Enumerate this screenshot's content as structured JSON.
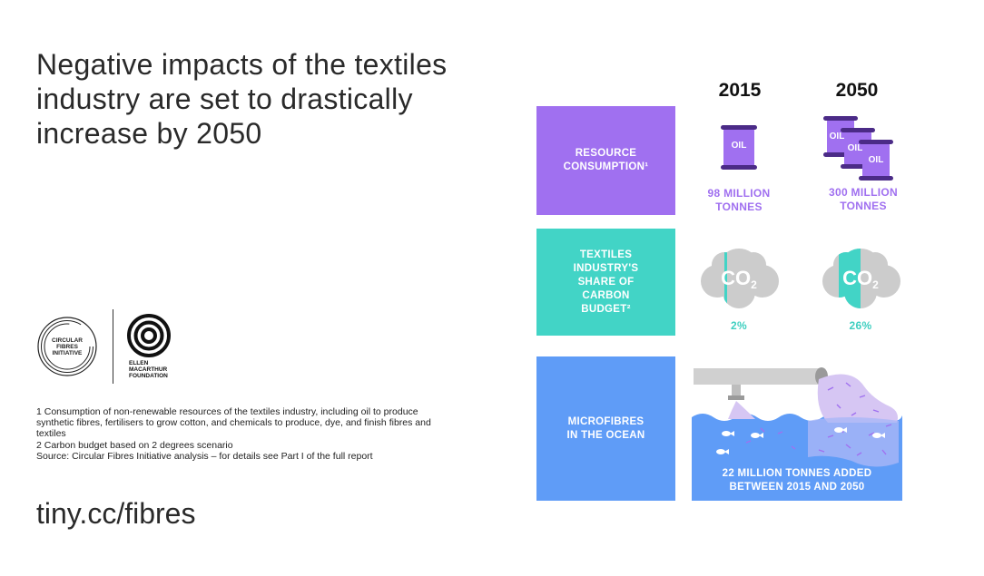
{
  "title": "Negative impacts of the textiles industry are set to drastically increase by 2050",
  "logos": {
    "cfi_text": [
      "CIRCULAR",
      "FIBRES",
      "INITIATIVE"
    ],
    "emf_text": [
      "ELLEN",
      "MACARTHUR",
      "FOUNDATION"
    ]
  },
  "footnotes": {
    "note1": "1 Consumption of non-renewable resources of the textiles industry, including oil to produce synthetic fibres, fertilisers to grow cotton, and chemicals to produce, dye, and finish fibres and textiles",
    "note2": "2 Carbon budget based on 2 degrees scenario",
    "source": "Source: Circular Fibres Initiative analysis – for details see Part I of the full report"
  },
  "url": "tiny.cc/fibres",
  "years": {
    "y1": "2015",
    "y2": "2050"
  },
  "rows": {
    "resource": {
      "label": "RESOURCE\nCONSUMPTION¹",
      "barrel_text": "OIL",
      "value_2015": "98 MILLION\nTONNES",
      "value_2050": "300 MILLION\nTONNES"
    },
    "carbon": {
      "label": "TEXTILES\nINDUSTRY'S\nSHARE OF\nCARBON\nBUDGET²",
      "cloud_text": "CO",
      "cloud_sub": "2",
      "share_2015": 0.02,
      "share_2050": 0.26,
      "value_2015": "2%",
      "value_2050": "26%"
    },
    "ocean": {
      "label": "MICROFIBRES\nIN THE OCEAN",
      "caption": "22 MILLION TONNES ADDED\nBETWEEN 2015 AND 2050"
    }
  },
  "colors": {
    "purple": "#a070f0",
    "teal": "#42d4c6",
    "blue": "#5f9cf7",
    "cloud_grey": "#cccccc",
    "lavender": "#d6c6f3"
  }
}
